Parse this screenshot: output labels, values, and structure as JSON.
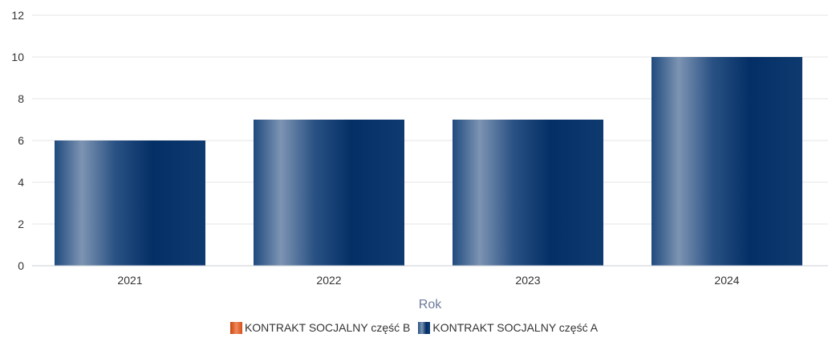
{
  "chart_data": {
    "type": "bar",
    "categories": [
      "2021",
      "2022",
      "2023",
      "2024"
    ],
    "xlabel": "Rok",
    "ylabel": "",
    "ylim": [
      0,
      12
    ],
    "yticks": [
      0,
      2,
      4,
      6,
      8,
      10,
      12
    ],
    "grid": true,
    "legend_position": "bottom",
    "series": [
      {
        "name": "KONTRAKT SOCJALNY część B",
        "color": "#e05a1a",
        "values": [
          0,
          0,
          0,
          0
        ]
      },
      {
        "name": "KONTRAKT SOCJALNY część A",
        "color": "#123d72",
        "values": [
          6,
          7,
          7,
          10
        ]
      }
    ]
  }
}
